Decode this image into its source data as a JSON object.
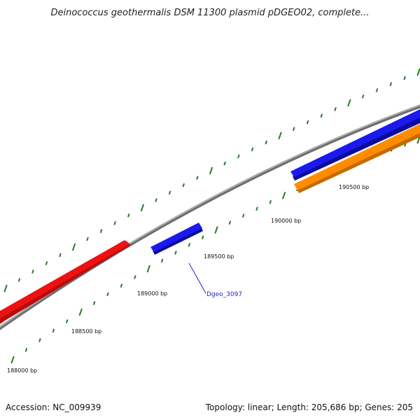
{
  "title": "Deinococcus geothermalis DSM 11300 plasmid pDGEO02, complete...",
  "footer": {
    "accession": "Accession: NC_009939",
    "summary": "Topology: linear; Length: 205,686 bp; Genes: 205"
  },
  "colors": {
    "backbone": "#8c8c8c",
    "tick": "#2a7a2a",
    "gene_red": "#ee1111",
    "gene_blue": "#1a1aee",
    "gene_orange": "#ff8c00",
    "label": "#2222cc"
  },
  "axis_labels": [
    {
      "bp": 188000,
      "text": "188000 bp"
    },
    {
      "bp": 188500,
      "text": "188500 bp"
    },
    {
      "bp": 189000,
      "text": "189000 bp"
    },
    {
      "bp": 189500,
      "text": "189500 bp"
    },
    {
      "bp": 190000,
      "text": "190000 bp"
    },
    {
      "bp": 190500,
      "text": "190500 bp"
    }
  ],
  "genes": [
    {
      "id": "gene-red",
      "color": "red",
      "strand": "+",
      "track": "outer-upper"
    },
    {
      "id": "gene-blue-1",
      "color": "blue",
      "strand": "+",
      "track": "inner-lower",
      "label": "Dgeo_3097"
    },
    {
      "id": "gene-blue-2",
      "color": "blue",
      "strand": "+",
      "track": "inner-lower"
    },
    {
      "id": "gene-orange",
      "color": "orange",
      "strand": "+",
      "track": "outer-lower"
    }
  ]
}
